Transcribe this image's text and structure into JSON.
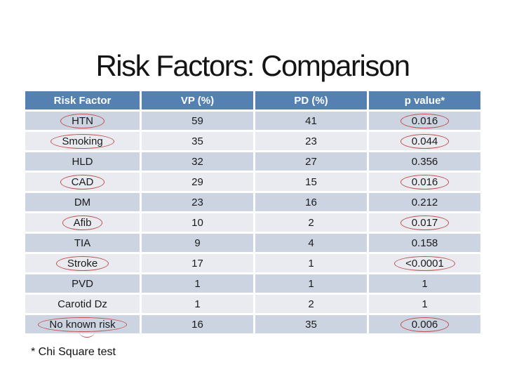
{
  "slide": {
    "title": "Risk Factors: Comparison",
    "footnote": "* Chi Square test"
  },
  "colors": {
    "header_bg": "#5580B2",
    "row_band_dark": "#CCD4E2",
    "row_band_light": "#E9EBF1",
    "annotation_red": "#C0504D",
    "header_text": "#FFFFFF",
    "body_text": "#1A1A1A",
    "background": "#FFFFFF"
  },
  "table": {
    "columns": [
      "Risk Factor",
      "VP (%)",
      "PD (%)",
      "p value*"
    ],
    "rows": [
      {
        "label": "HTN",
        "vp": "59",
        "pd": "41",
        "p": "0.016",
        "label_circled": true,
        "p_circled": true,
        "underline_tick": false
      },
      {
        "label": "Smoking",
        "vp": "35",
        "pd": "23",
        "p": "0.044",
        "label_circled": true,
        "p_circled": true,
        "underline_tick": false
      },
      {
        "label": "HLD",
        "vp": "32",
        "pd": "27",
        "p": "0.356",
        "label_circled": false,
        "p_circled": false,
        "underline_tick": false
      },
      {
        "label": "CAD",
        "vp": "29",
        "pd": "15",
        "p": "0.016",
        "label_circled": true,
        "p_circled": true,
        "underline_tick": false
      },
      {
        "label": "DM",
        "vp": "23",
        "pd": "16",
        "p": "0.212",
        "label_circled": false,
        "p_circled": false,
        "underline_tick": false
      },
      {
        "label": "Afib",
        "vp": "10",
        "pd": "2",
        "p": "0.017",
        "label_circled": true,
        "p_circled": true,
        "underline_tick": false
      },
      {
        "label": "TIA",
        "vp": "9",
        "pd": "4",
        "p": "0.158",
        "label_circled": false,
        "p_circled": false,
        "underline_tick": false
      },
      {
        "label": "Stroke",
        "vp": "17",
        "pd": "1",
        "p": "<0.0001",
        "label_circled": true,
        "p_circled": true,
        "underline_tick": false
      },
      {
        "label": "PVD",
        "vp": "1",
        "pd": "1",
        "p": "1",
        "label_circled": false,
        "p_circled": false,
        "underline_tick": false
      },
      {
        "label": "Carotid Dz",
        "vp": "1",
        "pd": "2",
        "p": "1",
        "label_circled": false,
        "p_circled": false,
        "underline_tick": false
      },
      {
        "label": "No known risk",
        "vp": "16",
        "pd": "35",
        "p": "0.006",
        "label_circled": true,
        "p_circled": true,
        "underline_tick": true
      }
    ]
  }
}
